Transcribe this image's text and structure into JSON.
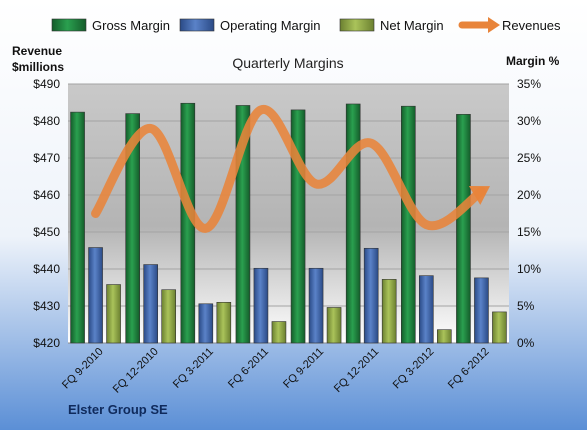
{
  "chart_data": {
    "type": "bar",
    "title": "Quarterly Margins",
    "company": "Elster Group SE",
    "left_axis_label_line1": "Revenue",
    "left_axis_label_line2": "$millions",
    "right_axis_label": "Margin %",
    "categories": [
      "FQ 9-2010",
      "FQ 12-2010",
      "FQ 3-2011",
      "FQ 6-2011",
      "FQ 9-2011",
      "FQ 12-2011",
      "FQ 3-2012",
      "FQ 6-2012"
    ],
    "left_ticks": [
      "$420",
      "$430",
      "$440",
      "$450",
      "$460",
      "$470",
      "$480",
      "$490"
    ],
    "right_ticks": [
      "0%",
      "5%",
      "10%",
      "15%",
      "20%",
      "25%",
      "30%",
      "35%"
    ],
    "left_range": [
      420,
      490
    ],
    "right_range": [
      0,
      35
    ],
    "legend_position": "top",
    "series": [
      {
        "name": "Gross Margin",
        "kind": "bar",
        "axis": "right",
        "color": "#1f7a3c",
        "values": [
          31.2,
          31.0,
          32.4,
          32.1,
          31.5,
          32.3,
          32.0,
          30.9
        ]
      },
      {
        "name": "Operating Margin",
        "kind": "bar",
        "axis": "right",
        "color": "#3f64a8",
        "values": [
          12.9,
          10.6,
          5.3,
          10.1,
          10.1,
          12.8,
          9.1,
          8.8
        ]
      },
      {
        "name": "Net Margin",
        "kind": "bar",
        "axis": "right",
        "color": "#8fa845",
        "values": [
          7.9,
          7.2,
          5.5,
          2.9,
          4.8,
          8.6,
          1.8,
          4.2
        ]
      },
      {
        "name": "Revenues",
        "kind": "line",
        "axis": "left",
        "color": "#e8843a",
        "values": [
          455,
          478,
          451,
          483,
          463,
          474,
          452,
          461
        ]
      }
    ]
  }
}
